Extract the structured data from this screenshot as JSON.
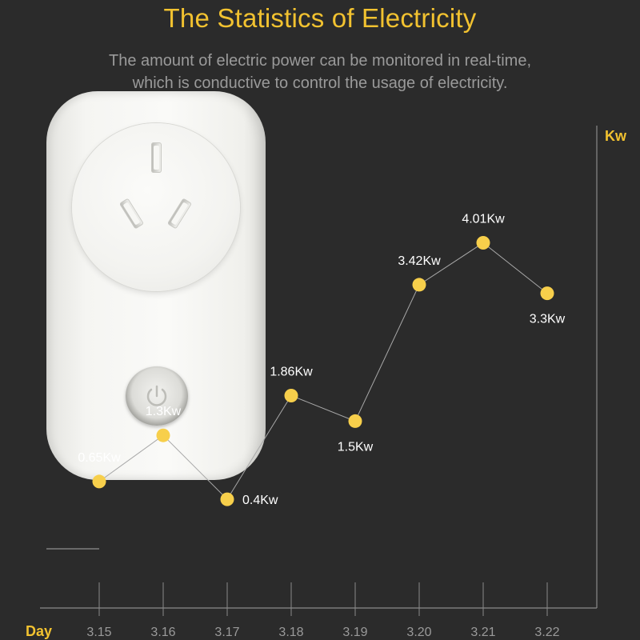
{
  "header": {
    "title": "The Statistics of Electricity",
    "subtitle_line1": "The amount of electric power can be monitored in real-time,",
    "subtitle_line2": "which is conductive to control the usage of electricity."
  },
  "product": {
    "icon": "smart-plug-socket",
    "button_icon": "power-icon"
  },
  "colors": {
    "background": "#2b2b2b",
    "accent": "#f2c230",
    "point": "#f7cf4b",
    "line": "#a8a8a8",
    "axis": "#8a8a8a"
  },
  "chart_data": {
    "type": "line",
    "title": "The Statistics of Electricity",
    "xlabel": "Day",
    "ylabel": "Kw",
    "categories": [
      "3.15",
      "3.16",
      "3.17",
      "3.18",
      "3.19",
      "3.20",
      "3.21",
      "3.22"
    ],
    "values": [
      0.65,
      1.3,
      0.4,
      1.86,
      1.5,
      3.42,
      4.01,
      3.3
    ],
    "data_labels": [
      "0.65Kw",
      "1.3Kw",
      "0.4Kw",
      "1.86Kw",
      "1.5Kw",
      "3.42Kw",
      "4.01Kw",
      "3.3Kw"
    ],
    "label_positions": [
      "above",
      "above",
      "right",
      "above",
      "below",
      "above",
      "above",
      "below"
    ],
    "ylim": [
      -1.13,
      5.66
    ],
    "grid": false,
    "legend": "none"
  }
}
